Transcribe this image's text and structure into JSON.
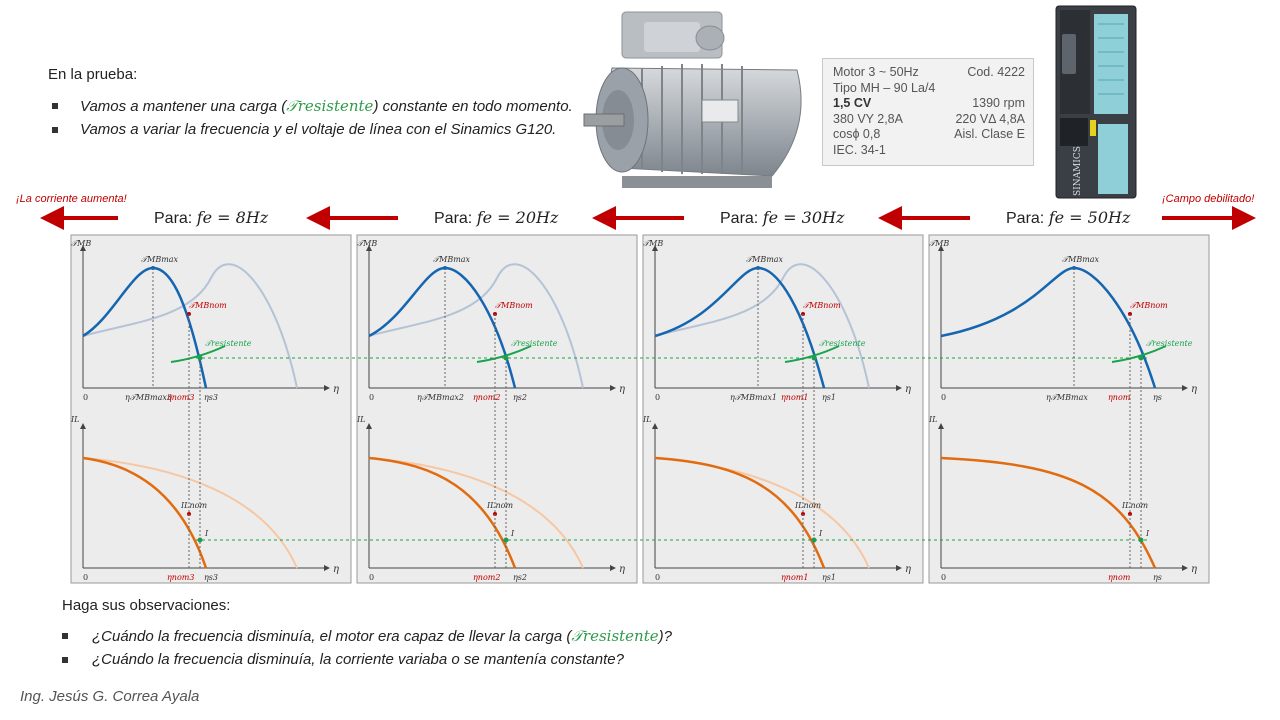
{
  "intro": {
    "title": "En la prueba:",
    "bullet1_pre": "Vamos a mantener una carga (",
    "bullet1_sym": "𝒯resistente",
    "bullet1_post": ") constante en todo momento.",
    "bullet2": "Vamos a variar la frecuencia y el voltaje de línea con el Sinamics G120."
  },
  "spec_plate": {
    "rows": [
      [
        "Motor 3 ~ 50Hz",
        "Cod. 4222"
      ],
      [
        "Tipo MH – 90 La/4",
        ""
      ],
      [
        "1,5 CV",
        "1390 rpm"
      ],
      [
        "380 VY 2,8A",
        "220 VΔ 4,8A"
      ],
      [
        "cosϕ 0,8",
        "Aisl. Clase E"
      ],
      [
        "IEC. 34-1",
        ""
      ]
    ]
  },
  "notes": {
    "left": "¡La corriente aumenta!",
    "right": "¡Campo debilitado!"
  },
  "frequency_headers": [
    {
      "prefix": "Para: ",
      "math": "fe = 8Hz"
    },
    {
      "prefix": "Para: ",
      "math": "fe = 20Hz"
    },
    {
      "prefix": "Para: ",
      "math": "fe = 30Hz"
    },
    {
      "prefix": "Para: ",
      "math": "fe = 50Hz"
    }
  ],
  "panels": [
    {
      "n_max": "η𝒯MBmax3",
      "n_nom": "ηnom3",
      "n_s": "ηs3"
    },
    {
      "n_max": "η𝒯MBmax2",
      "n_nom": "ηnom2",
      "n_s": "ηs2"
    },
    {
      "n_max": "η𝒯MBmax1",
      "n_nom": "ηnom1",
      "n_s": "ηs1"
    },
    {
      "n_max": "η𝒯MBmax",
      "n_nom": "ηnom",
      "n_s": "ηs"
    }
  ],
  "graph_labels": {
    "torque_axis": "𝒯MB",
    "current_axis": "IL",
    "speed_axis": "η",
    "zero": "0",
    "t_max": "𝒯MBmax",
    "t_nom": "𝒯MBnom",
    "t_load": "𝒯resistente",
    "i_nom": "ILnom",
    "i_point": "I"
  },
  "observations": {
    "title": "Haga sus observaciones:",
    "q1_pre": "¿Cuándo la frecuencia disminuía, el motor era capaz de llevar la carga (",
    "q1_sym": "𝒯resistente",
    "q1_post": ")?",
    "q2": "¿Cuándo la frecuencia disminuía, la corriente variaba o se mantenía constante?"
  },
  "author": "Ing. Jesús G. Correa Ayala",
  "device_label": "SINAMICS",
  "colors": {
    "torque_curve": "#1565b0",
    "ghost_curve": "#b4c3d6",
    "current_curve": "#e06b10",
    "ghost_current": "#f6c7a2",
    "load_curve": "#19a34a",
    "nominal_point": "#c00000",
    "arrow": "#c00000",
    "panel_bg": "#ececec"
  }
}
